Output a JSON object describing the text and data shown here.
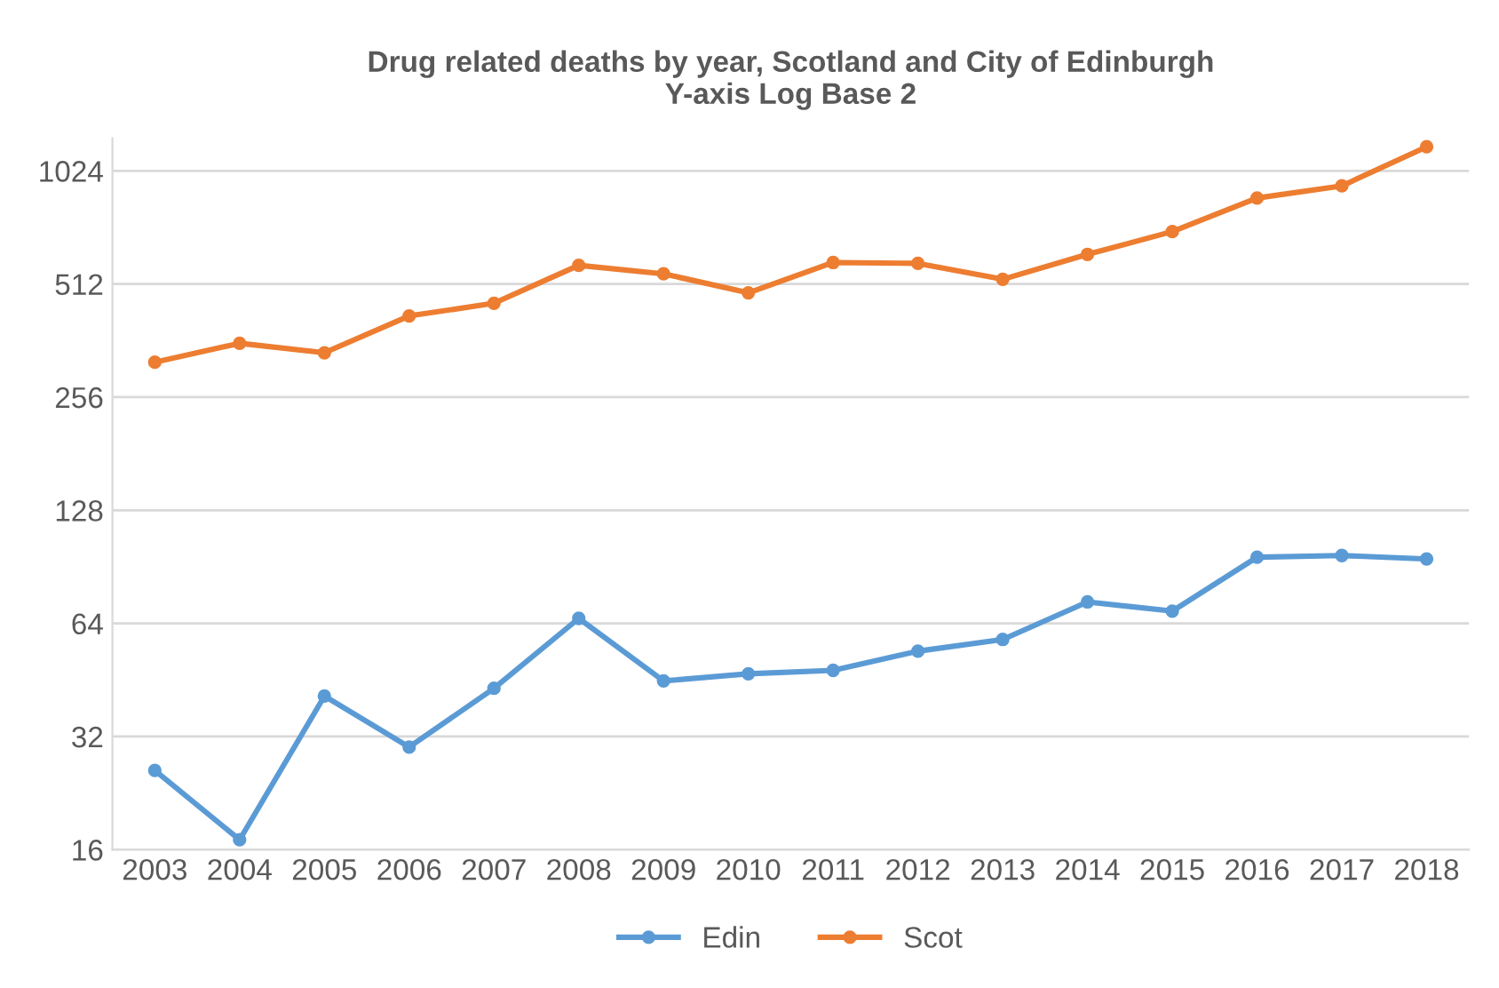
{
  "chart_data": {
    "type": "line",
    "title": "Drug related deaths by year, Scotland and City of Edinburgh\nY-axis Log Base 2",
    "categories": [
      "2003",
      "2004",
      "2005",
      "2006",
      "2007",
      "2008",
      "2009",
      "2010",
      "2011",
      "2012",
      "2013",
      "2014",
      "2015",
      "2016",
      "2017",
      "2018"
    ],
    "series": [
      {
        "name": "Edin",
        "color": "#5b9bd5",
        "values": [
          26,
          17,
          41,
          30,
          43,
          66,
          45,
          47,
          48,
          54,
          58,
          73,
          69,
          96,
          97,
          95
        ]
      },
      {
        "name": "Scot",
        "color": "#ed7d31",
        "values": [
          317,
          356,
          336,
          421,
          455,
          574,
          545,
          485,
          584,
          581,
          527,
          614,
          706,
          867,
          934,
          1187
        ]
      }
    ],
    "log": "y",
    "ylim": [
      16,
      1250
    ],
    "yticks": [
      16,
      32,
      64,
      128,
      256,
      512,
      1024
    ],
    "grid": "y",
    "legend": "bottom",
    "marker": "circle",
    "line_style": "solid"
  }
}
